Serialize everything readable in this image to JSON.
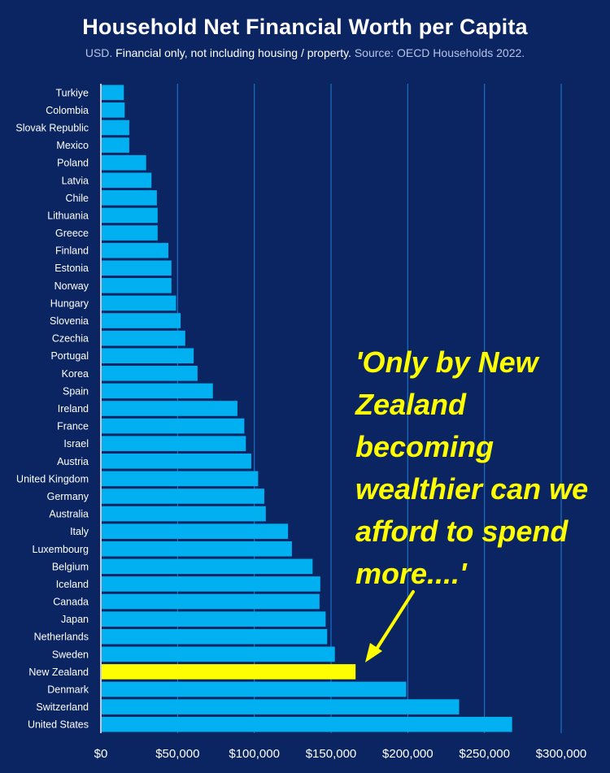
{
  "header": {
    "title": "Household Net Financial  Worth per Capita",
    "subtitle_usd": "USD.",
    "subtitle_main": "Financial only, not including housing / property.",
    "subtitle_source": "Source: OECD Households 2022."
  },
  "annotation": {
    "text": "'Only by New Zealand becoming wealthier can we afford to spend more....'"
  },
  "colors": {
    "background": "#0b2562",
    "bar": "#00b0f0",
    "highlight_bar": "#ffff00",
    "gridline": "#1f6fc4",
    "annotation": "#ffff00"
  },
  "chart_data": {
    "type": "bar",
    "orientation": "horizontal",
    "categories": [
      "Turkiye",
      "Colombia",
      "Slovak Republic",
      "Mexico",
      "Poland",
      "Latvia",
      "Chile",
      "Lithuania",
      "Greece",
      "Finland",
      "Estonia",
      "Norway",
      "Hungary",
      "Slovenia",
      "Czechia",
      "Portugal",
      "Korea",
      "Spain",
      "Ireland",
      "France",
      "Israel",
      "Austria",
      "United Kingdom",
      "Germany",
      "Australia",
      "Italy",
      "Luxembourg",
      "Belgium",
      "Iceland",
      "Canada",
      "Japan",
      "Netherlands",
      "Sweden",
      "New Zealand",
      "Denmark",
      "Switzerland",
      "United States"
    ],
    "values": [
      15000,
      15500,
      18500,
      18500,
      29500,
      33000,
      36500,
      37000,
      37000,
      44000,
      46000,
      46000,
      49000,
      52000,
      55000,
      60500,
      63000,
      73000,
      89000,
      93500,
      94500,
      98000,
      102500,
      106500,
      107500,
      122000,
      124500,
      138000,
      143000,
      142500,
      146500,
      147500,
      152500,
      166000,
      199000,
      233500,
      268000
    ],
    "highlight": "New Zealand",
    "x_ticks": [
      0,
      50000,
      100000,
      150000,
      200000,
      250000,
      300000
    ],
    "x_tick_labels": [
      "$0",
      "$50,000",
      "$100,000",
      "$150,000",
      "$200,000",
      "$250,000",
      "$300,000"
    ],
    "xlim": [
      0,
      300000
    ],
    "grid": "vertical"
  }
}
